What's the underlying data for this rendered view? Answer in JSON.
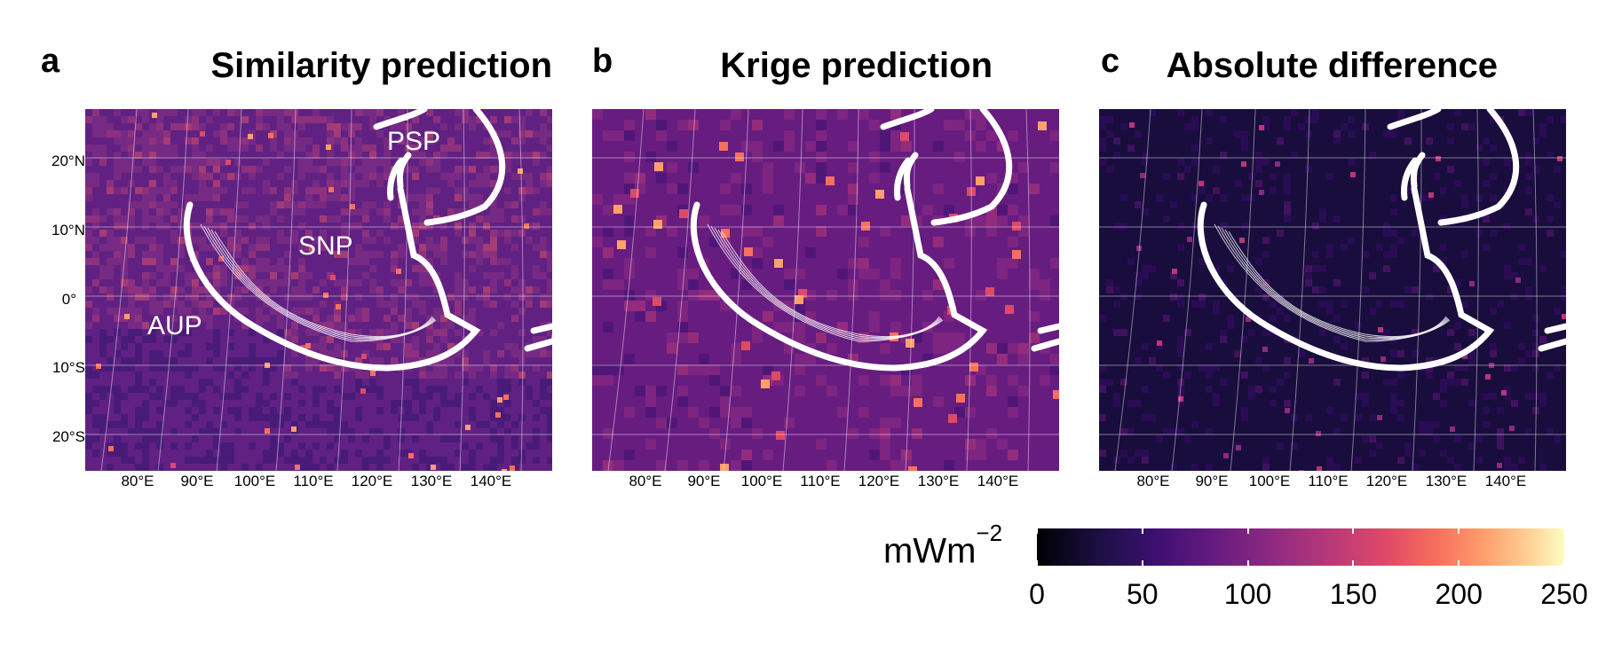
{
  "panels": [
    {
      "letter": "a",
      "title": "Similarity prediction",
      "labels": [
        "PSP",
        "SNP",
        "AUP"
      ],
      "variant": "similarity"
    },
    {
      "letter": "b",
      "title": "Krige prediction",
      "labels": [],
      "variant": "krige"
    },
    {
      "letter": "c",
      "title": "Absolute difference",
      "labels": [],
      "variant": "difference"
    }
  ],
  "axis": {
    "y_ticks": [
      "20°N",
      "10°N",
      "0°",
      "10°S",
      "20°S"
    ],
    "x_ticks": [
      "80°E",
      "90°E",
      "100°E",
      "110°E",
      "120°E",
      "130°E",
      "140°E"
    ]
  },
  "legend": {
    "unit": "mWm",
    "unit_exp": "−2",
    "ticks": [
      "0",
      "50",
      "100",
      "150",
      "200",
      "250"
    ],
    "range": [
      0,
      250
    ]
  },
  "colors": {
    "similarity_base": "#5b2a86",
    "krige_base": "#6a1f82",
    "difference_base": "#160b33",
    "outline": "#ffffff"
  }
}
